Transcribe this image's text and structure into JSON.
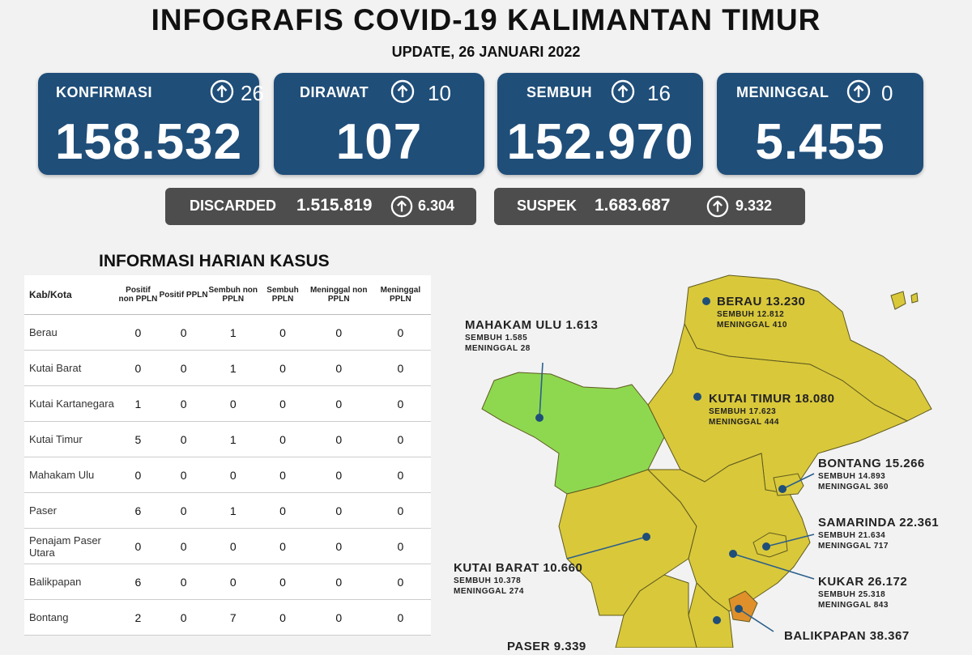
{
  "header": {
    "title": "INFOGRAFIS COVID-19 KALIMANTAN TIMUR",
    "subtitle": "UPDATE, 26 JANUARI 2022"
  },
  "stats": [
    {
      "label": "KONFIRMASI",
      "delta": "26",
      "value": "158.532"
    },
    {
      "label": "DIRAWAT",
      "delta": "10",
      "value": "107"
    },
    {
      "label": "SEMBUH",
      "delta": "16",
      "value": "152.970"
    },
    {
      "label": "MENINGGAL",
      "delta": "0",
      "value": "5.455"
    }
  ],
  "discarded": {
    "label": "DISCARDED",
    "value": "1.515.819",
    "delta": "6.304"
  },
  "suspek": {
    "label": "SUSPEK",
    "value": "1.683.687",
    "delta": "9.332"
  },
  "daily": {
    "title": "INFORMASI HARIAN KASUS",
    "headers": [
      "Kab/Kota",
      "Positif non PPLN",
      "Positif PPLN",
      "Sembuh non PPLN",
      "Sembuh PPLN",
      "Meninggal non PPLN",
      "Meninggal PPLN"
    ],
    "rows": [
      {
        "name": "Berau",
        "v": [
          "0",
          "0",
          "1",
          "0",
          "0",
          "0"
        ]
      },
      {
        "name": "Kutai Barat",
        "v": [
          "0",
          "0",
          "1",
          "0",
          "0",
          "0"
        ]
      },
      {
        "name": "Kutai Kartanegara",
        "v": [
          "1",
          "0",
          "0",
          "0",
          "0",
          "0"
        ]
      },
      {
        "name": "Kutai Timur",
        "v": [
          "5",
          "0",
          "1",
          "0",
          "0",
          "0"
        ]
      },
      {
        "name": "Mahakam Ulu",
        "v": [
          "0",
          "0",
          "0",
          "0",
          "0",
          "0"
        ]
      },
      {
        "name": "Paser",
        "v": [
          "6",
          "0",
          "1",
          "0",
          "0",
          "0"
        ]
      },
      {
        "name": "Penajam Paser Utara",
        "v": [
          "0",
          "0",
          "0",
          "0",
          "0",
          "0"
        ]
      },
      {
        "name": "Balikpapan",
        "v": [
          "6",
          "0",
          "0",
          "0",
          "0",
          "0"
        ]
      },
      {
        "name": "Bontang",
        "v": [
          "2",
          "0",
          "7",
          "0",
          "0",
          "0"
        ]
      }
    ]
  },
  "map": {
    "colors": {
      "yellow": "#d9c83a",
      "green": "#8ed850",
      "orange": "#e0902a",
      "line": "#2b5f8c"
    },
    "regions": [
      {
        "name": "BERAU 13.230",
        "sembuh": "SEMBUH 12.812",
        "meninggal": "MENINGGAL 410"
      },
      {
        "name": "MAHAKAM ULU 1.613",
        "sembuh": "SEMBUH 1.585",
        "meninggal": "MENINGGAL 28"
      },
      {
        "name": "KUTAI TIMUR 18.080",
        "sembuh": "SEMBUH 17.623",
        "meninggal": "MENINGGAL 444"
      },
      {
        "name": "BONTANG 15.266",
        "sembuh": "SEMBUH 14.893",
        "meninggal": "MENINGGAL 360"
      },
      {
        "name": "SAMARINDA 22.361",
        "sembuh": "SEMBUH 21.634",
        "meninggal": "MENINGGAL 717"
      },
      {
        "name": "KUTAI BARAT 10.660",
        "sembuh": "SEMBUH 10.378",
        "meninggal": "MENINGGAL 274"
      },
      {
        "name": "KUKAR 26.172",
        "sembuh": "SEMBUH 25.318",
        "meninggal": "MENINGGAL 843"
      },
      {
        "name": "BALIKPAPAN 38.367",
        "sembuh": "",
        "meninggal": ""
      },
      {
        "name": "PASER 9.339",
        "sembuh": "",
        "meninggal": ""
      }
    ]
  }
}
